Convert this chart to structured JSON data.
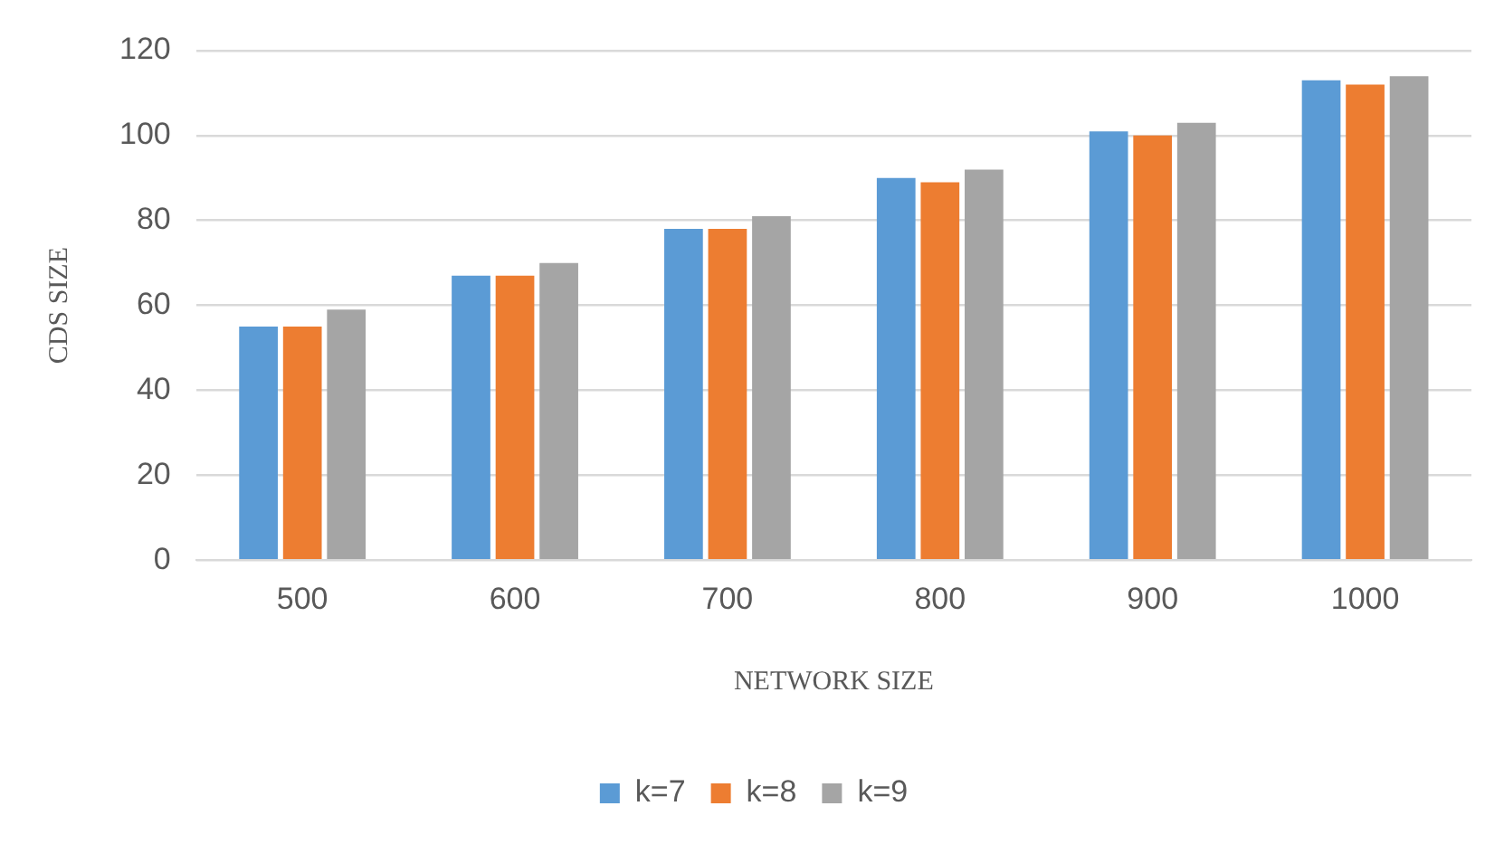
{
  "chart_data": {
    "type": "bar",
    "xlabel": "NETWORK SIZE",
    "ylabel": "CDS SIZE",
    "categories": [
      "500",
      "600",
      "700",
      "800",
      "900",
      "1000"
    ],
    "series": [
      {
        "name": "k=7",
        "color": "#5b9bd5",
        "values": [
          55,
          67,
          78,
          90,
          101,
          113
        ]
      },
      {
        "name": "k=8",
        "color": "#ed7d31",
        "values": [
          55,
          67,
          78,
          89,
          100,
          112
        ]
      },
      {
        "name": "k=9",
        "color": "#a5a5a5",
        "values": [
          59,
          70,
          81,
          92,
          103,
          114
        ]
      }
    ],
    "ylim": [
      0,
      120
    ],
    "yticks": [
      0,
      20,
      40,
      60,
      80,
      100,
      120
    ],
    "grid": "y",
    "legend": "bottom"
  }
}
